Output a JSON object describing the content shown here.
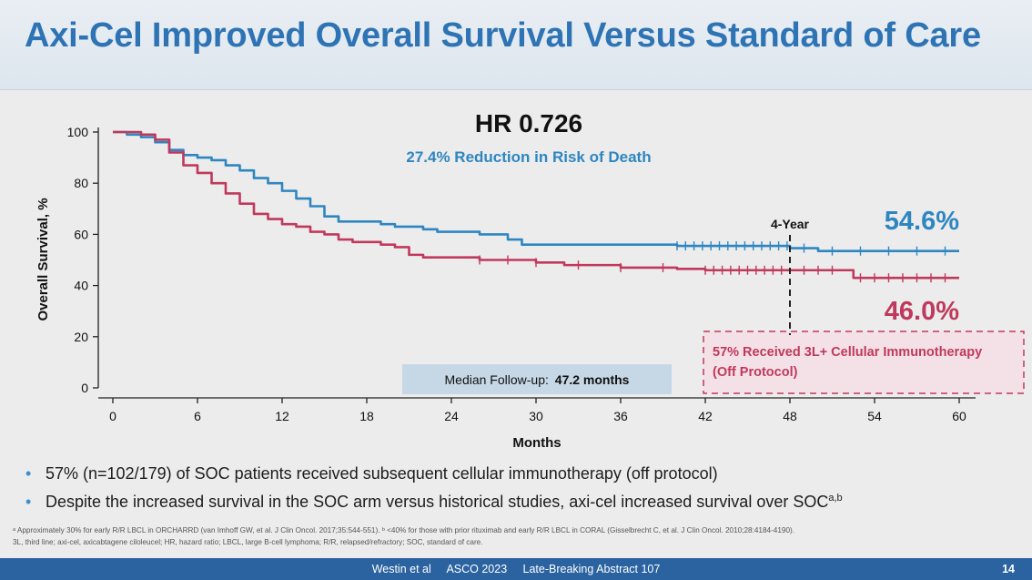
{
  "slide": {
    "title": "Axi-Cel Improved Overall Survival Versus Standard of Care",
    "hr_title": "HR 0.726",
    "hr_subtitle": "27.4% Reduction in Risk of Death",
    "bullets": [
      {
        "text": "57% (n=102/179) of SOC patients received subsequent cellular immunotherapy (off protocol)",
        "sup": ""
      },
      {
        "text": "Despite the increased survival in the SOC arm versus historical studies, axi-cel increased survival over SOC",
        "sup": "a,b"
      }
    ],
    "footnote_line1": "ᵃ Approximately 30% for early R/R LBCL in ORCHARRD (van Imhoff GW, et al. J Clin Oncol. 2017;35:544-551). ᵇ <40% for those with prior rituximab and early R/R LBCL in CORAL (Gisselbrecht C, et al. J Clin Oncol. 2010;28:4184-4190).",
    "footnote_line2": "3L, third line; axi-cel, axicabtagene ciloleucel; HR, hazard ratio; LBCL, large B-cell lymphoma; R/R, relapsed/refractory; SOC, standard of care.",
    "footer_citation": "Westin et al     ASCO 2023     Late-Breaking Abstract 107",
    "page_number": "14"
  },
  "colors": {
    "axicel": "#2e86c1",
    "soc": "#c0395c",
    "title": "#2e74b5",
    "footer": "#2a63a0"
  },
  "chart_data": {
    "type": "line",
    "title": "",
    "xlabel": "Months",
    "ylabel": "Overall Survival, %",
    "xlim": [
      0,
      60
    ],
    "ylim": [
      0,
      100
    ],
    "xticks": [
      0,
      6,
      12,
      18,
      24,
      30,
      36,
      42,
      48,
      54,
      60
    ],
    "yticks": [
      0,
      20,
      40,
      60,
      80,
      100
    ],
    "grid": false,
    "series": [
      {
        "name": "",
        "color": "#2e86c1",
        "points": [
          [
            0,
            100
          ],
          [
            1,
            99
          ],
          [
            2,
            98
          ],
          [
            3,
            96
          ],
          [
            4,
            93
          ],
          [
            5,
            91
          ],
          [
            6,
            90
          ],
          [
            7,
            89
          ],
          [
            8,
            87
          ],
          [
            9,
            85
          ],
          [
            10,
            82
          ],
          [
            11,
            80
          ],
          [
            12,
            77
          ],
          [
            13,
            74
          ],
          [
            14,
            71
          ],
          [
            15,
            67
          ],
          [
            16,
            65
          ],
          [
            18,
            65
          ],
          [
            19,
            64
          ],
          [
            20,
            63
          ],
          [
            21,
            63
          ],
          [
            22,
            62
          ],
          [
            23,
            61
          ],
          [
            24,
            61
          ],
          [
            26,
            60
          ],
          [
            28,
            58
          ],
          [
            29,
            56
          ],
          [
            31,
            56
          ],
          [
            34,
            56
          ],
          [
            36,
            56
          ],
          [
            38,
            56
          ],
          [
            40,
            55.5
          ],
          [
            42,
            55.5
          ],
          [
            44,
            55.5
          ],
          [
            46,
            55.5
          ],
          [
            48,
            54.6
          ],
          [
            50,
            53.5
          ],
          [
            52,
            53.5
          ],
          [
            54,
            53.5
          ],
          [
            56,
            53.5
          ],
          [
            58,
            53.5
          ],
          [
            60,
            53.5
          ]
        ],
        "censor_x": [
          40,
          40.6,
          41.2,
          41.8,
          42.4,
          43,
          43.6,
          44.2,
          44.8,
          45.4,
          46,
          46.6,
          47.2,
          47.8,
          49,
          51,
          53,
          55,
          57,
          59
        ]
      },
      {
        "name": "",
        "color": "#c0395c",
        "points": [
          [
            0,
            100
          ],
          [
            1,
            100
          ],
          [
            2,
            99
          ],
          [
            3,
            97
          ],
          [
            4,
            92
          ],
          [
            5,
            87
          ],
          [
            6,
            84
          ],
          [
            7,
            80
          ],
          [
            8,
            76
          ],
          [
            9,
            72
          ],
          [
            10,
            68
          ],
          [
            11,
            66
          ],
          [
            12,
            64
          ],
          [
            13,
            63
          ],
          [
            14,
            61
          ],
          [
            15,
            60
          ],
          [
            16,
            58
          ],
          [
            17,
            57
          ],
          [
            18,
            57
          ],
          [
            19,
            56
          ],
          [
            20,
            55
          ],
          [
            21,
            52
          ],
          [
            22,
            51
          ],
          [
            24,
            51
          ],
          [
            26,
            50
          ],
          [
            28,
            50
          ],
          [
            30,
            49
          ],
          [
            32,
            48
          ],
          [
            34,
            48
          ],
          [
            36,
            47
          ],
          [
            38,
            47
          ],
          [
            40,
            46.5
          ],
          [
            42,
            46
          ],
          [
            44,
            46
          ],
          [
            46,
            46
          ],
          [
            48,
            46
          ],
          [
            50,
            46
          ],
          [
            52,
            46
          ],
          [
            52.5,
            43
          ],
          [
            54,
            43
          ],
          [
            56,
            43
          ],
          [
            58,
            43
          ],
          [
            60,
            43
          ]
        ],
        "censor_x": [
          26,
          28,
          30,
          33,
          36,
          39,
          42,
          42.6,
          43.2,
          43.8,
          44.4,
          45,
          45.6,
          46.2,
          46.8,
          47.4,
          49,
          50,
          51,
          53,
          54,
          55,
          56,
          57,
          58,
          59
        ]
      }
    ],
    "annotations": {
      "four_year_label": "4-Year",
      "four_year_x": 48,
      "axicel_value": "54.6%",
      "soc_value": "46.0%",
      "median_followup_prefix": "Median Follow-up:",
      "median_followup_value": "47.2 months",
      "soc_box_line1": "57% Received 3L+ Cellular Immunotherapy",
      "soc_box_line2": "(Off Protocol)"
    }
  }
}
